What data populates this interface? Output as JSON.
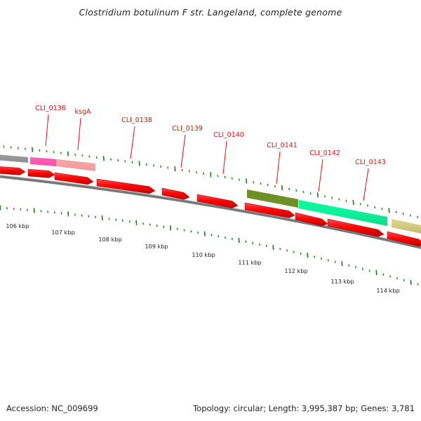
{
  "title": "Clostridium botulinum F str. Langeland, complete genome",
  "footer": {
    "accession": "Accession: NC_009699",
    "summary": "Topology: circular; Length: 3,995,387 bp; Genes: 3,781"
  },
  "colors": {
    "cds": "#ff0000",
    "backbone": "#8a8a8a",
    "tick": "#1a7a1a",
    "label": "#e01010"
  },
  "axis": {
    "unit": "kbp",
    "labels": [
      "106 kbp",
      "107 kbp",
      "108 kbp",
      "109 kbp",
      "110 kbp",
      "111 kbp",
      "112 kbp",
      "113 kbp",
      "114 kbp"
    ]
  },
  "gene_labels": [
    "CLI_0136",
    "ksgA",
    "CLI_0138",
    "CLI_0139",
    "CLI_0140",
    "CLI_0141",
    "CLI_0142",
    "CLI_0143"
  ],
  "feature_colors": [
    "#666666",
    "#ff1493",
    "#f08080",
    "#6b8e23",
    "#00fa9a",
    "#f0e68c"
  ]
}
